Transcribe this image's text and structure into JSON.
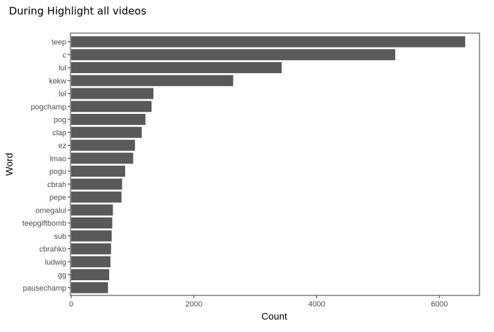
{
  "chart_data": {
    "type": "bar",
    "orientation": "horizontal",
    "title": "During Highlight all videos",
    "xlabel": "Count",
    "ylabel": "Word",
    "xlim": [
      0,
      6500
    ],
    "x_ticks": [
      0,
      2000,
      4000,
      6000
    ],
    "grid": false,
    "bar_color": "#595959",
    "categories": [
      "teep",
      "c",
      "lul",
      "kekw",
      "lol",
      "pogchamp",
      "pog",
      "clap",
      "ez",
      "lmao",
      "pogu",
      "cbrah",
      "pepe",
      "omegalul",
      "teepgiftbomb",
      "sub",
      "cbrahko",
      "ludwig",
      "gg",
      "pausechamp"
    ],
    "values": [
      6420,
      5280,
      3430,
      2640,
      1340,
      1310,
      1210,
      1150,
      1040,
      1010,
      880,
      830,
      820,
      680,
      670,
      660,
      650,
      640,
      620,
      600
    ]
  }
}
